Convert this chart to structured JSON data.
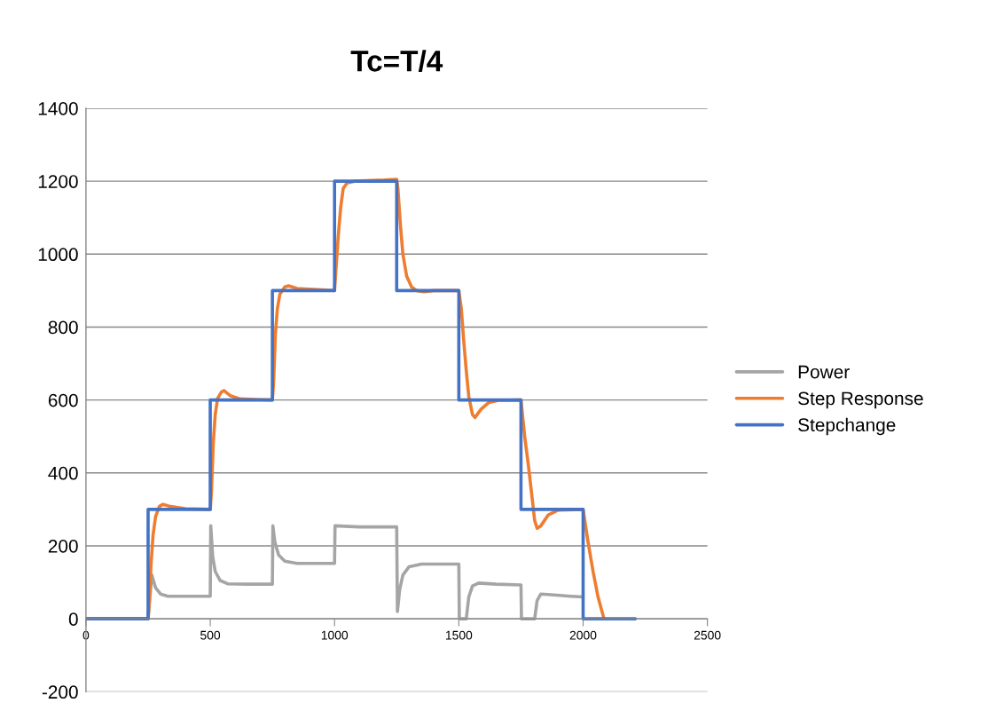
{
  "chart_data": {
    "type": "line",
    "title": "Tc=T/4",
    "xlim": [
      0,
      2500
    ],
    "xticks": [
      0,
      500,
      1000,
      1500,
      2000,
      2500
    ],
    "ylim": [
      -200,
      1400
    ],
    "yticks": [
      -200,
      0,
      200,
      400,
      600,
      800,
      1000,
      1200,
      1400
    ],
    "grid": "y",
    "legend": "right",
    "marker": "none",
    "line_style": "solid",
    "series": [
      {
        "name": "Power",
        "color": "#a5a5a5",
        "x": [
          0,
          250,
          265,
          280,
          300,
          330,
          400,
          500,
          502,
          510,
          520,
          540,
          570,
          650,
          750,
          752,
          760,
          775,
          800,
          850,
          1000,
          1002,
          1100,
          1250,
          1253,
          1262,
          1275,
          1300,
          1350,
          1500,
          1502,
          1530,
          1540,
          1555,
          1580,
          1650,
          1750,
          1752,
          1805,
          1815,
          1830,
          1870,
          1950,
          2000
        ],
        "values": [
          0,
          0,
          120,
          85,
          68,
          62,
          62,
          62,
          255,
          170,
          130,
          105,
          96,
          95,
          95,
          255,
          210,
          175,
          158,
          152,
          152,
          255,
          252,
          252,
          20,
          80,
          120,
          143,
          150,
          150,
          0,
          0,
          60,
          90,
          98,
          95,
          93,
          0,
          0,
          50,
          68,
          66,
          62,
          60
        ]
      },
      {
        "name": "Step Response",
        "color": "#ed7d31",
        "x": [
          0,
          250,
          255,
          262,
          270,
          280,
          295,
          310,
          340,
          400,
          500,
          505,
          512,
          520,
          530,
          545,
          555,
          580,
          620,
          700,
          750,
          755,
          762,
          770,
          780,
          800,
          815,
          850,
          950,
          1000,
          1005,
          1015,
          1025,
          1035,
          1050,
          1080,
          1150,
          1200,
          1250,
          1255,
          1265,
          1275,
          1290,
          1310,
          1330,
          1360,
          1400,
          1500,
          1510,
          1520,
          1530,
          1540,
          1555,
          1565,
          1590,
          1620,
          1660,
          1750,
          1765,
          1780,
          1795,
          1805,
          1815,
          1830,
          1860,
          1900,
          2000,
          2020,
          2040,
          2060,
          2082
        ],
        "values": [
          0,
          0,
          50,
          150,
          230,
          280,
          308,
          314,
          308,
          302,
          300,
          350,
          480,
          560,
          605,
          622,
          626,
          612,
          603,
          601,
          600,
          650,
          780,
          850,
          890,
          910,
          913,
          906,
          902,
          900,
          950,
          1050,
          1130,
          1180,
          1195,
          1200,
          1202,
          1203,
          1205,
          1180,
          1080,
          1000,
          940,
          910,
          900,
          897,
          900,
          900,
          850,
          760,
          680,
          610,
          560,
          552,
          575,
          593,
          599,
          600,
          500,
          420,
          330,
          270,
          248,
          255,
          285,
          298,
          300,
          210,
          130,
          60,
          5
        ]
      },
      {
        "name": "Stepchange",
        "color": "#4472c4",
        "x": [
          0,
          250,
          250,
          500,
          500,
          750,
          750,
          1000,
          1000,
          1250,
          1250,
          1500,
          1500,
          1750,
          1750,
          2000,
          2000,
          2210
        ],
        "values": [
          0,
          0,
          300,
          300,
          600,
          600,
          900,
          900,
          1200,
          1200,
          900,
          900,
          600,
          600,
          300,
          300,
          0,
          0
        ]
      }
    ]
  }
}
